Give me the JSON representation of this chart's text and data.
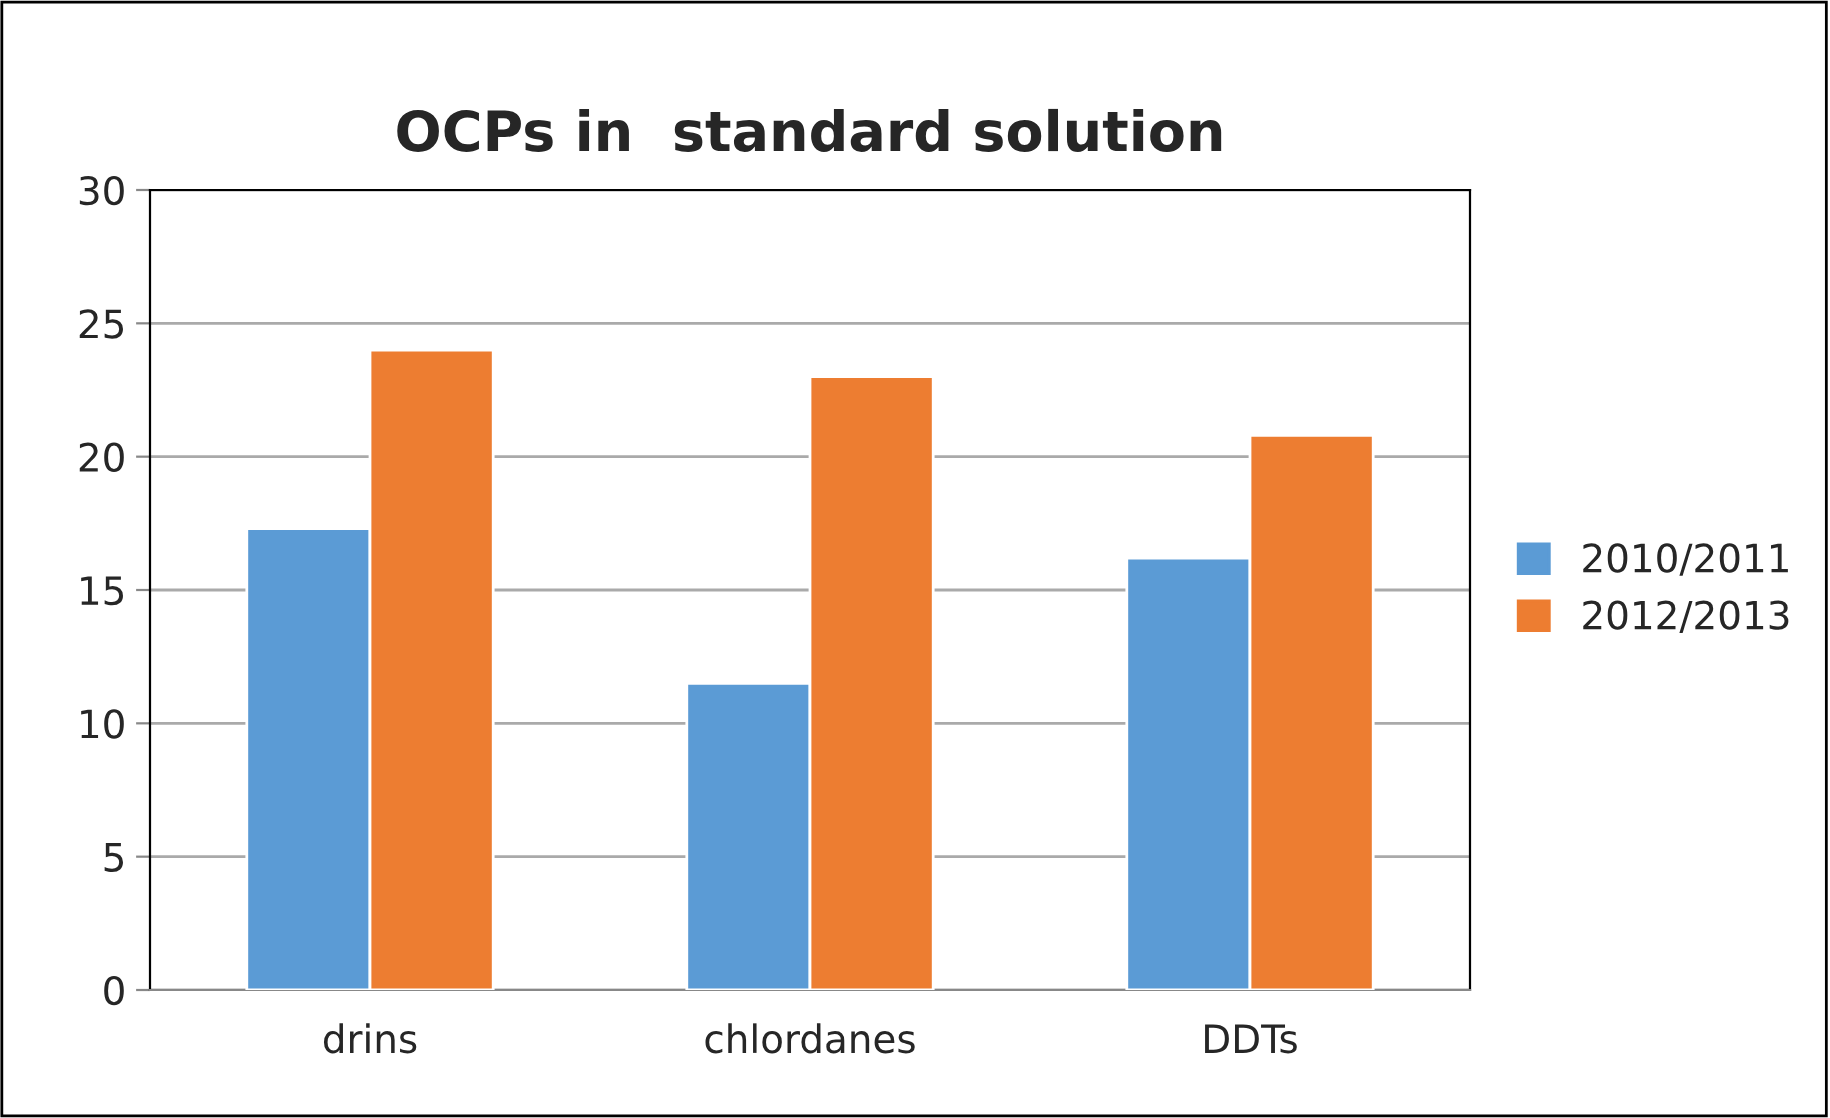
{
  "chart_data": {
    "type": "bar",
    "title": "OCPs in  standard solution",
    "categories": [
      "drins",
      "chlordanes",
      "DDTs"
    ],
    "series": [
      {
        "name": "2010/2011",
        "color": "#5b9bd5",
        "values": [
          17.3,
          11.5,
          16.2
        ]
      },
      {
        "name": "2012/2013",
        "color": "#ed7d31",
        "values": [
          24.0,
          23.0,
          20.8
        ]
      }
    ],
    "ylim": [
      0,
      30
    ],
    "yticks": [
      0,
      5,
      10,
      15,
      20,
      25,
      30
    ],
    "grid": "y",
    "legend": "right"
  }
}
